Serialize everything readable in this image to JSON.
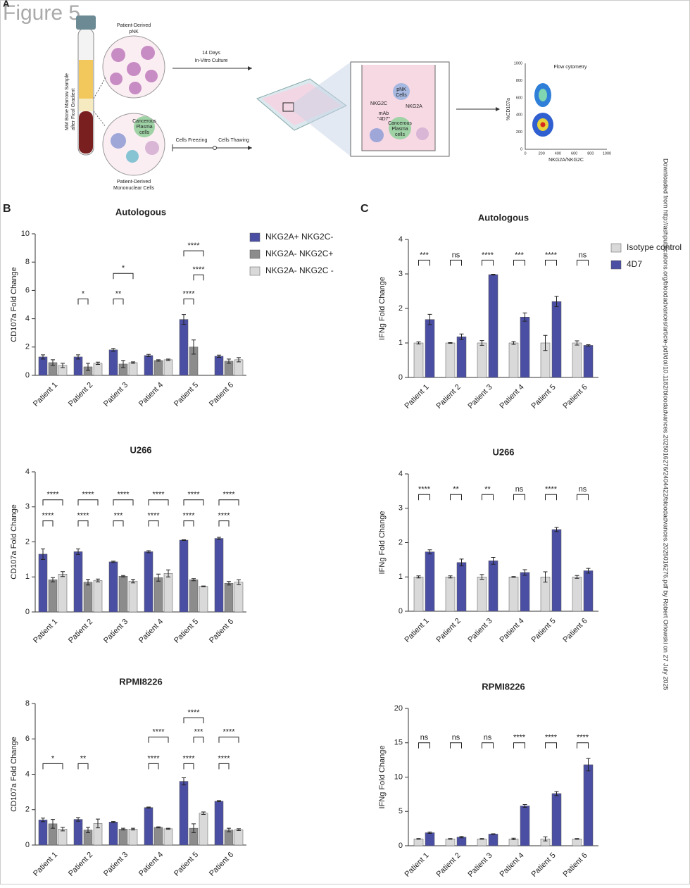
{
  "figure_title": "Figure 5",
  "panels": [
    "A",
    "B",
    "C"
  ],
  "side_note": "Downloaded from http://ashpublications.org/bloodadvances/article-pdf/doi/10.1182/bloodadvances.2025016276/2404422/bloodadvances.2025016276.pdf by Robert Orlowski on 27 July 2025",
  "diagram": {
    "texts": [
      "Patient-Derived",
      "pNK",
      "MM Bone Marrow Sample",
      "after Ficol Gradient",
      "Cancerous",
      "Plasma",
      "cells",
      "Patient-Derived",
      "Mononuclear Cells",
      "14 Days",
      "In-Vitro Culture",
      "Cells Freezing",
      "Cells Thawing",
      "NKG2C",
      "pNK",
      "Cells",
      "NKG2A",
      "mAb",
      "\"4D7\"",
      "Cancerous",
      "Plasma",
      "cells",
      "Flow cytometry",
      "%CD107a",
      "NKG2A/NKG2C"
    ],
    "flow_ticks": [
      0,
      200,
      400,
      600,
      800,
      1000
    ]
  },
  "chart_data": [
    {
      "type": "bar",
      "title": "Autologous",
      "ylabel": "CD107a Fold Change",
      "legend": "right",
      "categories": [
        "Patient 1",
        "Patient 2",
        "Patient 3",
        "Patient 4",
        "Patient 5",
        "Patient 6"
      ],
      "ylim": [
        0,
        10
      ],
      "yticks": [
        0,
        2,
        4,
        6,
        8,
        10
      ],
      "series": [
        {
          "name": "NKG2A+ NKG2C-",
          "color": "#4b4fa3",
          "values": [
            1.3,
            1.3,
            1.8,
            1.4,
            3.95,
            1.35
          ],
          "errors": [
            0.15,
            0.15,
            0.1,
            0.08,
            0.35,
            0.08
          ]
        },
        {
          "name": "NKG2A- NKG2C+",
          "color": "#8c8c8c",
          "values": [
            0.9,
            0.6,
            0.8,
            1.05,
            2.0,
            1.0
          ],
          "errors": [
            0.2,
            0.25,
            0.25,
            0.05,
            0.5,
            0.15
          ]
        },
        {
          "name": "NKG2A- NKG2C -",
          "color": "#d9d9d9",
          "values": [
            0.7,
            0.85,
            0.9,
            1.1,
            null,
            1.1
          ],
          "errors": [
            0.15,
            0.08,
            0.05,
            0.05,
            null,
            0.15
          ]
        }
      ],
      "annotations": [
        {
          "text": "*",
          "category": 1,
          "from": 0,
          "to": 1,
          "y": 5.4
        },
        {
          "text": "**",
          "category": 2,
          "from": 0,
          "to": 1,
          "y": 5.4
        },
        {
          "text": "*",
          "category": 2,
          "from": 0,
          "to": 2,
          "y": 7.2
        },
        {
          "text": "****",
          "category": 4,
          "from": 0,
          "to": 1,
          "y": 5.4
        },
        {
          "text": "****",
          "category": 4,
          "from": 1,
          "to": 2,
          "y": 7.1
        },
        {
          "text": "****",
          "category": 4,
          "from": 0,
          "to": 2,
          "y": 8.8
        }
      ]
    },
    {
      "type": "bar",
      "title": "U266",
      "ylabel": "CD107a Fold Change",
      "categories": [
        "Patient 1",
        "Patient 2",
        "Patient 3",
        "Patient 4",
        "Patient 5",
        "Patient 6"
      ],
      "ylim": [
        0,
        4
      ],
      "yticks": [
        0,
        1,
        2,
        3,
        4
      ],
      "series": [
        {
          "name": "NKG2A+ NKG2C-",
          "color": "#4b4fa3",
          "values": [
            1.65,
            1.72,
            1.43,
            1.72,
            2.05,
            2.1
          ],
          "errors": [
            0.15,
            0.08,
            0.02,
            0.03,
            0.01,
            0.03
          ]
        },
        {
          "name": "NKG2A- NKG2C+",
          "color": "#8c8c8c",
          "values": [
            0.92,
            0.85,
            1.02,
            0.98,
            0.92,
            0.82
          ],
          "errors": [
            0.06,
            0.08,
            0.02,
            0.1,
            0.03,
            0.05
          ]
        },
        {
          "name": "NKG2A- NKG2C -",
          "color": "#d9d9d9",
          "values": [
            1.08,
            0.9,
            0.88,
            1.1,
            0.73,
            0.85
          ],
          "errors": [
            0.07,
            0.04,
            0.05,
            0.1,
            0.01,
            0.07
          ]
        }
      ],
      "annotations": [
        {
          "text": "****",
          "category": 0,
          "from": 0,
          "to": 1,
          "y": 2.6
        },
        {
          "text": "****",
          "category": 0,
          "from": 0,
          "to": 2,
          "y": 3.2
        },
        {
          "text": "****",
          "category": 1,
          "from": 0,
          "to": 1,
          "y": 2.6
        },
        {
          "text": "****",
          "category": 1,
          "from": 0,
          "to": 2,
          "y": 3.2
        },
        {
          "text": "***",
          "category": 2,
          "from": 0,
          "to": 1,
          "y": 2.6
        },
        {
          "text": "****",
          "category": 2,
          "from": 0,
          "to": 2,
          "y": 3.2
        },
        {
          "text": "****",
          "category": 3,
          "from": 0,
          "to": 1,
          "y": 2.6
        },
        {
          "text": "****",
          "category": 3,
          "from": 0,
          "to": 2,
          "y": 3.2
        },
        {
          "text": "****",
          "category": 4,
          "from": 0,
          "to": 1,
          "y": 2.6
        },
        {
          "text": "****",
          "category": 4,
          "from": 0,
          "to": 2,
          "y": 3.2
        },
        {
          "text": "****",
          "category": 5,
          "from": 0,
          "to": 1,
          "y": 2.6
        },
        {
          "text": "****",
          "category": 5,
          "from": 0,
          "to": 2,
          "y": 3.2
        }
      ]
    },
    {
      "type": "bar",
      "title": "RPMI8226",
      "ylabel": "CD107a Fold Change",
      "categories": [
        "Patient 1",
        "Patient 2",
        "Patient 3",
        "Patient 4",
        "Patient 5",
        "Patient 6"
      ],
      "ylim": [
        0,
        8
      ],
      "yticks": [
        0,
        2,
        4,
        6,
        8
      ],
      "series": [
        {
          "name": "NKG2A+ NKG2C-",
          "color": "#4b4fa3",
          "values": [
            1.42,
            1.45,
            1.3,
            2.12,
            3.6,
            2.48
          ],
          "errors": [
            0.1,
            0.1,
            0.03,
            0.03,
            0.2,
            0.03
          ]
        },
        {
          "name": "NKG2A- NKG2C+",
          "color": "#8c8c8c",
          "values": [
            1.2,
            0.85,
            0.9,
            1.0,
            0.95,
            0.85
          ],
          "errors": [
            0.25,
            0.15,
            0.05,
            0.03,
            0.25,
            0.1
          ]
        },
        {
          "name": "NKG2A- NKG2C -",
          "color": "#d9d9d9",
          "values": [
            0.9,
            1.22,
            0.9,
            0.92,
            1.8,
            0.87
          ],
          "errors": [
            0.1,
            0.25,
            0.05,
            0.03,
            0.07,
            0.05
          ]
        }
      ],
      "annotations": [
        {
          "text": "*",
          "category": 0,
          "from": 0,
          "to": 2,
          "y": 4.6
        },
        {
          "text": "**",
          "category": 1,
          "from": 0,
          "to": 1,
          "y": 4.6
        },
        {
          "text": "****",
          "category": 3,
          "from": 0,
          "to": 1,
          "y": 4.6
        },
        {
          "text": "****",
          "category": 3,
          "from": 0,
          "to": 2,
          "y": 6.1
        },
        {
          "text": "****",
          "category": 4,
          "from": 0,
          "to": 1,
          "y": 4.6
        },
        {
          "text": "***",
          "category": 4,
          "from": 1,
          "to": 2,
          "y": 6.1
        },
        {
          "text": "****",
          "category": 4,
          "from": 0,
          "to": 2,
          "y": 7.2
        },
        {
          "text": "****",
          "category": 5,
          "from": 0,
          "to": 1,
          "y": 4.6
        },
        {
          "text": "****",
          "category": 5,
          "from": 0,
          "to": 2,
          "y": 6.1
        }
      ]
    },
    {
      "type": "bar",
      "title": "Autologous",
      "ylabel": "IFNg Fold Change",
      "legend": "right",
      "categories": [
        "Patient 1",
        "Patient 2",
        "Patient 3",
        "Patient 4",
        "Patient 5",
        "Patient 6"
      ],
      "ylim": [
        0,
        4
      ],
      "yticks": [
        0,
        1,
        2,
        3,
        4
      ],
      "series": [
        {
          "name": "Isotype control",
          "color": "#d9d9d9",
          "values": [
            1,
            1,
            1,
            1,
            1,
            1
          ],
          "errors": [
            0.03,
            0.01,
            0.07,
            0.04,
            0.22,
            0.06
          ]
        },
        {
          "name": "4D7",
          "color": "#4b4fa3",
          "values": [
            1.68,
            1.18,
            2.98,
            1.75,
            2.2,
            0.93
          ],
          "errors": [
            0.15,
            0.08,
            0.01,
            0.12,
            0.15,
            0.02
          ]
        }
      ],
      "annotations": [
        {
          "text": "***",
          "category": 0,
          "from": 0,
          "to": 1,
          "y": 3.4
        },
        {
          "text": "ns",
          "category": 1,
          "from": 0,
          "to": 1,
          "y": 3.4
        },
        {
          "text": "****",
          "category": 2,
          "from": 0,
          "to": 1,
          "y": 3.4
        },
        {
          "text": "***",
          "category": 3,
          "from": 0,
          "to": 1,
          "y": 3.4
        },
        {
          "text": "****",
          "category": 4,
          "from": 0,
          "to": 1,
          "y": 3.4
        },
        {
          "text": "ns",
          "category": 5,
          "from": 0,
          "to": 1,
          "y": 3.4
        }
      ]
    },
    {
      "type": "bar",
      "title": "U266",
      "ylabel": "IFNg Fold Change",
      "categories": [
        "Patient 1",
        "Patient 2",
        "Patient 3",
        "Patient 4",
        "Patient 5",
        "Patient 6"
      ],
      "ylim": [
        0,
        4
      ],
      "yticks": [
        0,
        1,
        2,
        3,
        4
      ],
      "series": [
        {
          "name": "Isotype control",
          "color": "#d9d9d9",
          "values": [
            1,
            1,
            1,
            1,
            1,
            1
          ],
          "errors": [
            0.03,
            0.03,
            0.07,
            0.01,
            0.15,
            0.04
          ]
        },
        {
          "name": "4D7",
          "color": "#4b4fa3",
          "values": [
            1.73,
            1.42,
            1.47,
            1.13,
            2.38,
            1.18
          ],
          "errors": [
            0.06,
            0.1,
            0.1,
            0.08,
            0.06,
            0.07
          ]
        }
      ],
      "annotations": [
        {
          "text": "****",
          "category": 0,
          "from": 0,
          "to": 1,
          "y": 3.4
        },
        {
          "text": "**",
          "category": 1,
          "from": 0,
          "to": 1,
          "y": 3.4
        },
        {
          "text": "**",
          "category": 2,
          "from": 0,
          "to": 1,
          "y": 3.4
        },
        {
          "text": "ns",
          "category": 3,
          "from": 0,
          "to": 1,
          "y": 3.4
        },
        {
          "text": "****",
          "category": 4,
          "from": 0,
          "to": 1,
          "y": 3.4
        },
        {
          "text": "ns",
          "category": 5,
          "from": 0,
          "to": 1,
          "y": 3.4
        }
      ]
    },
    {
      "type": "bar",
      "title": "RPMI8226",
      "ylabel": "IFNg Fold Change",
      "categories": [
        "Patient 1",
        "Patient 2",
        "Patient 3",
        "Patient 4",
        "Patient 5",
        "Patient 6"
      ],
      "ylim": [
        0,
        20
      ],
      "yticks": [
        0,
        5,
        10,
        15,
        20
      ],
      "series": [
        {
          "name": "Isotype control",
          "color": "#d9d9d9",
          "values": [
            1,
            1,
            1,
            1,
            1,
            1
          ],
          "errors": [
            0.05,
            0.05,
            0.05,
            0.1,
            0.3,
            0.05
          ]
        },
        {
          "name": "4D7",
          "color": "#4b4fa3",
          "values": [
            1.9,
            1.25,
            1.7,
            5.8,
            7.6,
            11.8
          ],
          "errors": [
            0.1,
            0.1,
            0.05,
            0.2,
            0.3,
            0.9
          ]
        }
      ],
      "annotations": [
        {
          "text": "ns",
          "category": 0,
          "from": 0,
          "to": 1,
          "y": 15
        },
        {
          "text": "ns",
          "category": 1,
          "from": 0,
          "to": 1,
          "y": 15
        },
        {
          "text": "ns",
          "category": 2,
          "from": 0,
          "to": 1,
          "y": 15
        },
        {
          "text": "****",
          "category": 3,
          "from": 0,
          "to": 1,
          "y": 15
        },
        {
          "text": "****",
          "category": 4,
          "from": 0,
          "to": 1,
          "y": 15
        },
        {
          "text": "****",
          "category": 5,
          "from": 0,
          "to": 1,
          "y": 15
        }
      ]
    }
  ]
}
